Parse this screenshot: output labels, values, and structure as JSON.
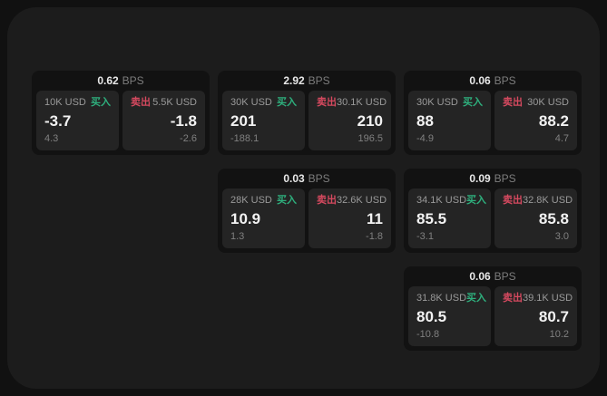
{
  "labels": {
    "bps": "BPS",
    "buy": "买入",
    "sell": "卖出"
  },
  "colors": {
    "outer_bg": "#111111",
    "panel_bg": "#1c1c1c",
    "card_bg": "#121212",
    "tile_bg": "#242424",
    "buy": "#2eaf7d",
    "sell": "#d5495f"
  },
  "cards": [
    {
      "col": 1,
      "row": 1,
      "bps": "0.62",
      "buy": {
        "amount": "10K USD",
        "price": "-3.7",
        "delta": "4.3"
      },
      "sell": {
        "amount": "5.5K USD",
        "price": "-1.8",
        "delta": "-2.6"
      }
    },
    {
      "col": 2,
      "row": 1,
      "bps": "2.92",
      "buy": {
        "amount": "30K USD",
        "price": "201",
        "delta": "-188.1"
      },
      "sell": {
        "amount": "30.1K USD",
        "price": "210",
        "delta": "196.5"
      }
    },
    {
      "col": 3,
      "row": 1,
      "bps": "0.06",
      "buy": {
        "amount": "30K USD",
        "price": "88",
        "delta": "-4.9"
      },
      "sell": {
        "amount": "30K USD",
        "price": "88.2",
        "delta": "4.7"
      }
    },
    {
      "col": 2,
      "row": 2,
      "bps": "0.03",
      "buy": {
        "amount": "28K USD",
        "price": "10.9",
        "delta": "1.3"
      },
      "sell": {
        "amount": "32.6K USD",
        "price": "11",
        "delta": "-1.8"
      }
    },
    {
      "col": 3,
      "row": 2,
      "bps": "0.09",
      "buy": {
        "amount": "34.1K USD",
        "price": "85.5",
        "delta": "-3.1"
      },
      "sell": {
        "amount": "32.8K USD",
        "price": "85.8",
        "delta": "3.0"
      }
    },
    {
      "col": 3,
      "row": 3,
      "bps": "0.06",
      "buy": {
        "amount": "31.8K USD",
        "price": "80.5",
        "delta": "-10.8"
      },
      "sell": {
        "amount": "39.1K USD",
        "price": "80.7",
        "delta": "10.2"
      }
    }
  ]
}
